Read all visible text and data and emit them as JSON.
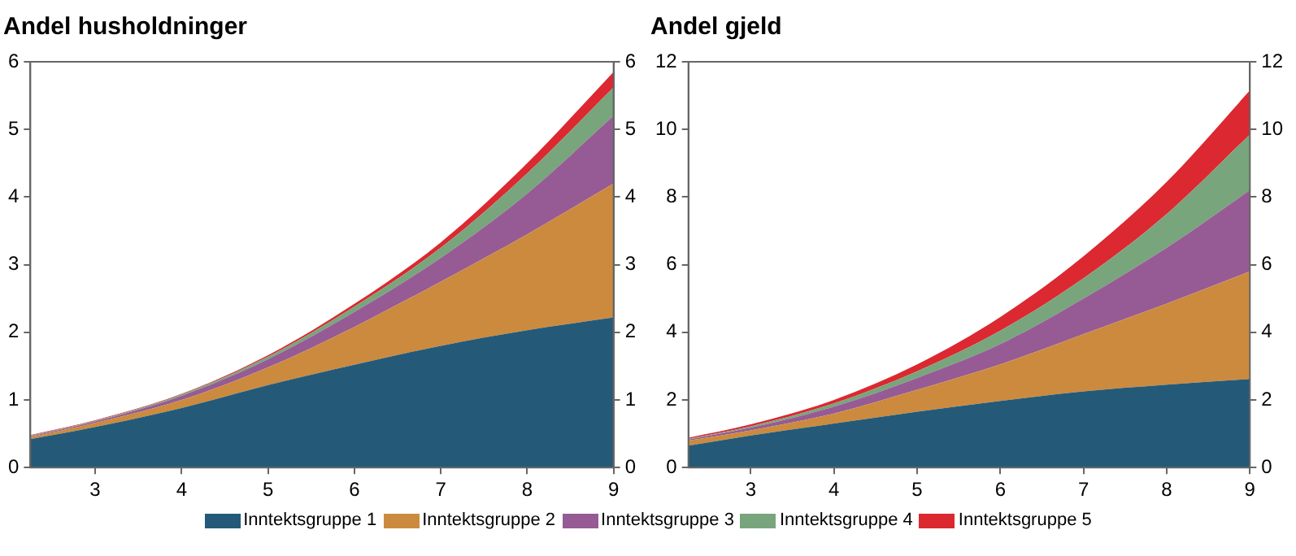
{
  "chart_data": [
    {
      "type": "area",
      "title": "Andel husholdninger",
      "stacked": true,
      "x": [
        2.25,
        3,
        4,
        5,
        6,
        7,
        8,
        9
      ],
      "xlim": [
        2.25,
        9
      ],
      "xticks": [
        3,
        4,
        5,
        6,
        7,
        8,
        9
      ],
      "ylim": [
        0,
        6
      ],
      "yticks": [
        0,
        1,
        2,
        3,
        4,
        5,
        6
      ],
      "y2lim": [
        0,
        6
      ],
      "y2ticks": [
        0,
        1,
        2,
        3,
        4,
        5,
        6
      ],
      "grid": false,
      "legend": "bottom",
      "series": [
        {
          "name": "Inntektsgruppe 1",
          "color": "#245a78",
          "values": [
            0.42,
            0.6,
            0.88,
            1.22,
            1.52,
            1.8,
            2.03,
            2.22
          ]
        },
        {
          "name": "Inntektsgruppe 2",
          "color": "#cc8a3e",
          "values": [
            0.03,
            0.06,
            0.12,
            0.26,
            0.56,
            0.95,
            1.42,
            1.98
          ]
        },
        {
          "name": "Inntektsgruppe 3",
          "color": "#965b94",
          "values": [
            0.01,
            0.02,
            0.06,
            0.12,
            0.22,
            0.35,
            0.6,
            1.0
          ]
        },
        {
          "name": "Inntektsgruppe 4",
          "color": "#78a57c",
          "values": [
            0.01,
            0.01,
            0.02,
            0.04,
            0.08,
            0.15,
            0.3,
            0.42
          ]
        },
        {
          "name": "Inntektsgruppe 5",
          "color": "#dc2830",
          "values": [
            0.01,
            0.01,
            0.01,
            0.02,
            0.04,
            0.08,
            0.15,
            0.23
          ]
        }
      ]
    },
    {
      "type": "area",
      "title": "Andel gjeld",
      "stacked": true,
      "x": [
        2.25,
        3,
        4,
        5,
        6,
        7,
        8,
        9
      ],
      "xlim": [
        2.25,
        9
      ],
      "xticks": [
        3,
        4,
        5,
        6,
        7,
        8,
        9
      ],
      "ylim": [
        0,
        12
      ],
      "yticks": [
        0,
        2,
        4,
        6,
        8,
        10,
        12
      ],
      "y2lim": [
        0,
        12
      ],
      "y2ticks": [
        0,
        2,
        4,
        6,
        8,
        10,
        12
      ],
      "grid": false,
      "series": [
        {
          "color": "#245a78",
          "values": [
            0.65,
            0.95,
            1.3,
            1.65,
            1.97,
            2.25,
            2.45,
            2.62
          ]
        },
        {
          "color": "#cc8a3e",
          "values": [
            0.15,
            0.15,
            0.3,
            0.65,
            1.08,
            1.7,
            2.4,
            3.18
          ]
        },
        {
          "color": "#965b94",
          "values": [
            0.03,
            0.08,
            0.2,
            0.35,
            0.6,
            1.05,
            1.65,
            2.4
          ]
        },
        {
          "color": "#78a57c",
          "values": [
            0.02,
            0.04,
            0.1,
            0.2,
            0.4,
            0.6,
            1.0,
            1.65
          ]
        },
        {
          "color": "#dc2830",
          "values": [
            0.03,
            0.06,
            0.1,
            0.2,
            0.4,
            0.65,
            0.95,
            1.3
          ]
        }
      ]
    }
  ]
}
